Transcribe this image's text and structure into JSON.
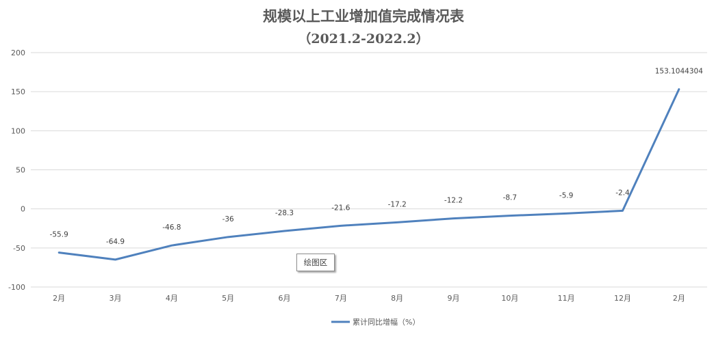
{
  "chart_data": {
    "type": "line",
    "title": "规模以上工业增加值完成情况表",
    "subtitle": "（2021.2-2022.2）",
    "categories": [
      "2月",
      "3月",
      "4月",
      "5月",
      "6月",
      "7月",
      "8月",
      "9月",
      "10月",
      "11月",
      "12月",
      "2月"
    ],
    "series": [
      {
        "name": "累计同比增幅（%）",
        "values": [
          -55.9,
          -64.9,
          -46.8,
          -36,
          -28.3,
          -21.6,
          -17.2,
          -12.2,
          -8.7,
          -5.9,
          -2.4,
          153.1044304
        ],
        "labels": [
          "-55.9",
          "-64.9",
          "-46.8",
          "-36",
          "-28.3",
          "-21.6",
          "-17.2",
          "-12.2",
          "-8.7",
          "-5.9",
          "-2.4",
          "153.1044304"
        ],
        "color": "#4f81bd"
      }
    ],
    "y_ticks": [
      "200",
      "150",
      "100",
      "50",
      "0",
      "-50",
      "-100"
    ],
    "ylim": [
      -100,
      200
    ],
    "grid": true,
    "legend_position": "bottom"
  },
  "tooltip": {
    "text": "绘图区"
  }
}
